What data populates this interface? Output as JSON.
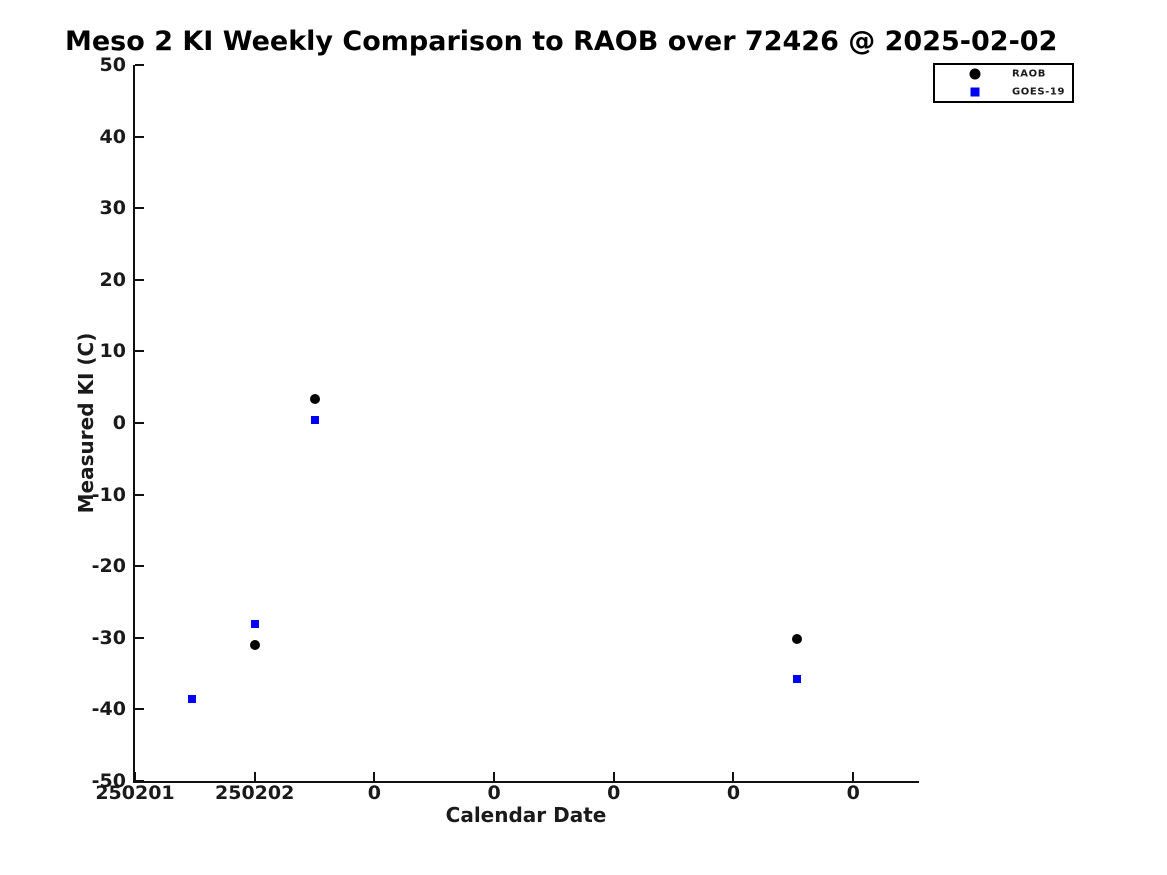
{
  "colors": {
    "background": "#ffffff",
    "axis": "#111111",
    "text": "#1a1a1a",
    "title": "#000000",
    "raob": "#000000",
    "goes19": "#0000f5"
  },
  "chart_data": {
    "type": "scatter",
    "title": "Meso 2 KI Weekly Comparison to RAOB over 72426 @ 2025-02-02",
    "xlabel": "Calendar Date",
    "ylabel": "Measured KI (C)",
    "xlim": [
      0,
      6.533
    ],
    "ylim": [
      -50,
      50
    ],
    "grid": false,
    "x_unit": "days since 250201",
    "x_ticks": [
      {
        "x": 0,
        "label": "250201"
      },
      {
        "x": 1,
        "label": "250202"
      },
      {
        "x": 2,
        "label": "0"
      },
      {
        "x": 3,
        "label": "0"
      },
      {
        "x": 4,
        "label": "0"
      },
      {
        "x": 5,
        "label": "0"
      },
      {
        "x": 6,
        "label": "0"
      }
    ],
    "y_ticks": [
      {
        "y": 50,
        "label": "50"
      },
      {
        "y": 40,
        "label": "40"
      },
      {
        "y": 30,
        "label": "30"
      },
      {
        "y": 20,
        "label": "20"
      },
      {
        "y": 10,
        "label": "10"
      },
      {
        "y": 0,
        "label": "0"
      },
      {
        "y": -10,
        "label": "-10"
      },
      {
        "y": -20,
        "label": "-20"
      },
      {
        "y": -30,
        "label": "-30"
      },
      {
        "y": -40,
        "label": "-40"
      },
      {
        "y": -50,
        "label": "-50"
      }
    ],
    "series": [
      {
        "name": "RAOB",
        "marker": "circle",
        "color": "#000000",
        "marker_size": 10,
        "points": [
          {
            "x": 1.0,
            "y": -31.0
          },
          {
            "x": 1.5,
            "y": 3.4
          },
          {
            "x": 5.53,
            "y": -30.1
          }
        ]
      },
      {
        "name": "GOES-19",
        "marker": "square",
        "color": "#0000f5",
        "marker_size": 8,
        "points": [
          {
            "x": 0.48,
            "y": -38.6
          },
          {
            "x": 1.0,
            "y": -28.1
          },
          {
            "x": 1.5,
            "y": 0.4
          },
          {
            "x": 5.53,
            "y": -35.8
          }
        ]
      }
    ],
    "legend": {
      "position": "top-right",
      "entries": [
        "RAOB",
        "GOES-19"
      ]
    }
  }
}
